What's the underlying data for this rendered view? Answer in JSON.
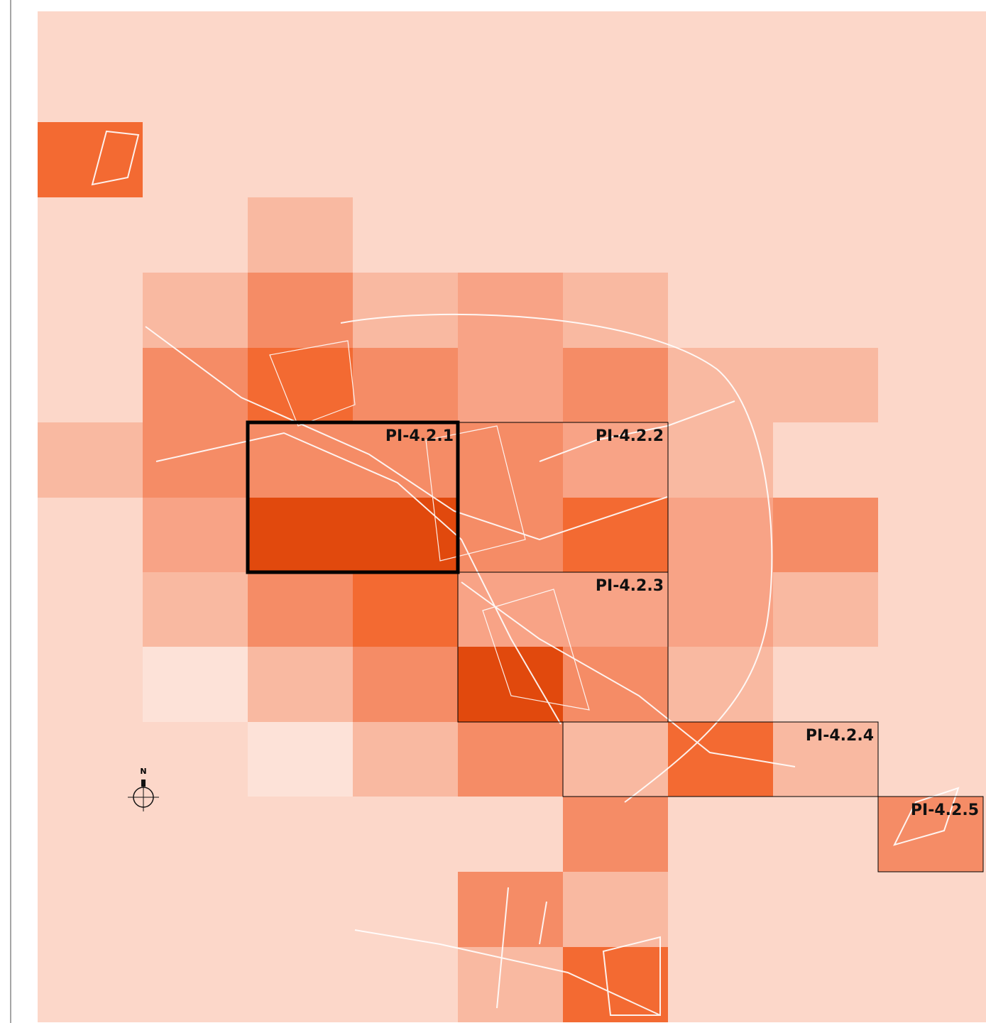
{
  "zones": [
    {
      "label": "PI-4.2.1"
    },
    {
      "label": "PI-4.2.2"
    },
    {
      "label": "PI-4.2.3"
    },
    {
      "label": "PI-4.2.4"
    },
    {
      "label": "PI-4.2.5"
    }
  ],
  "compass": "N"
}
